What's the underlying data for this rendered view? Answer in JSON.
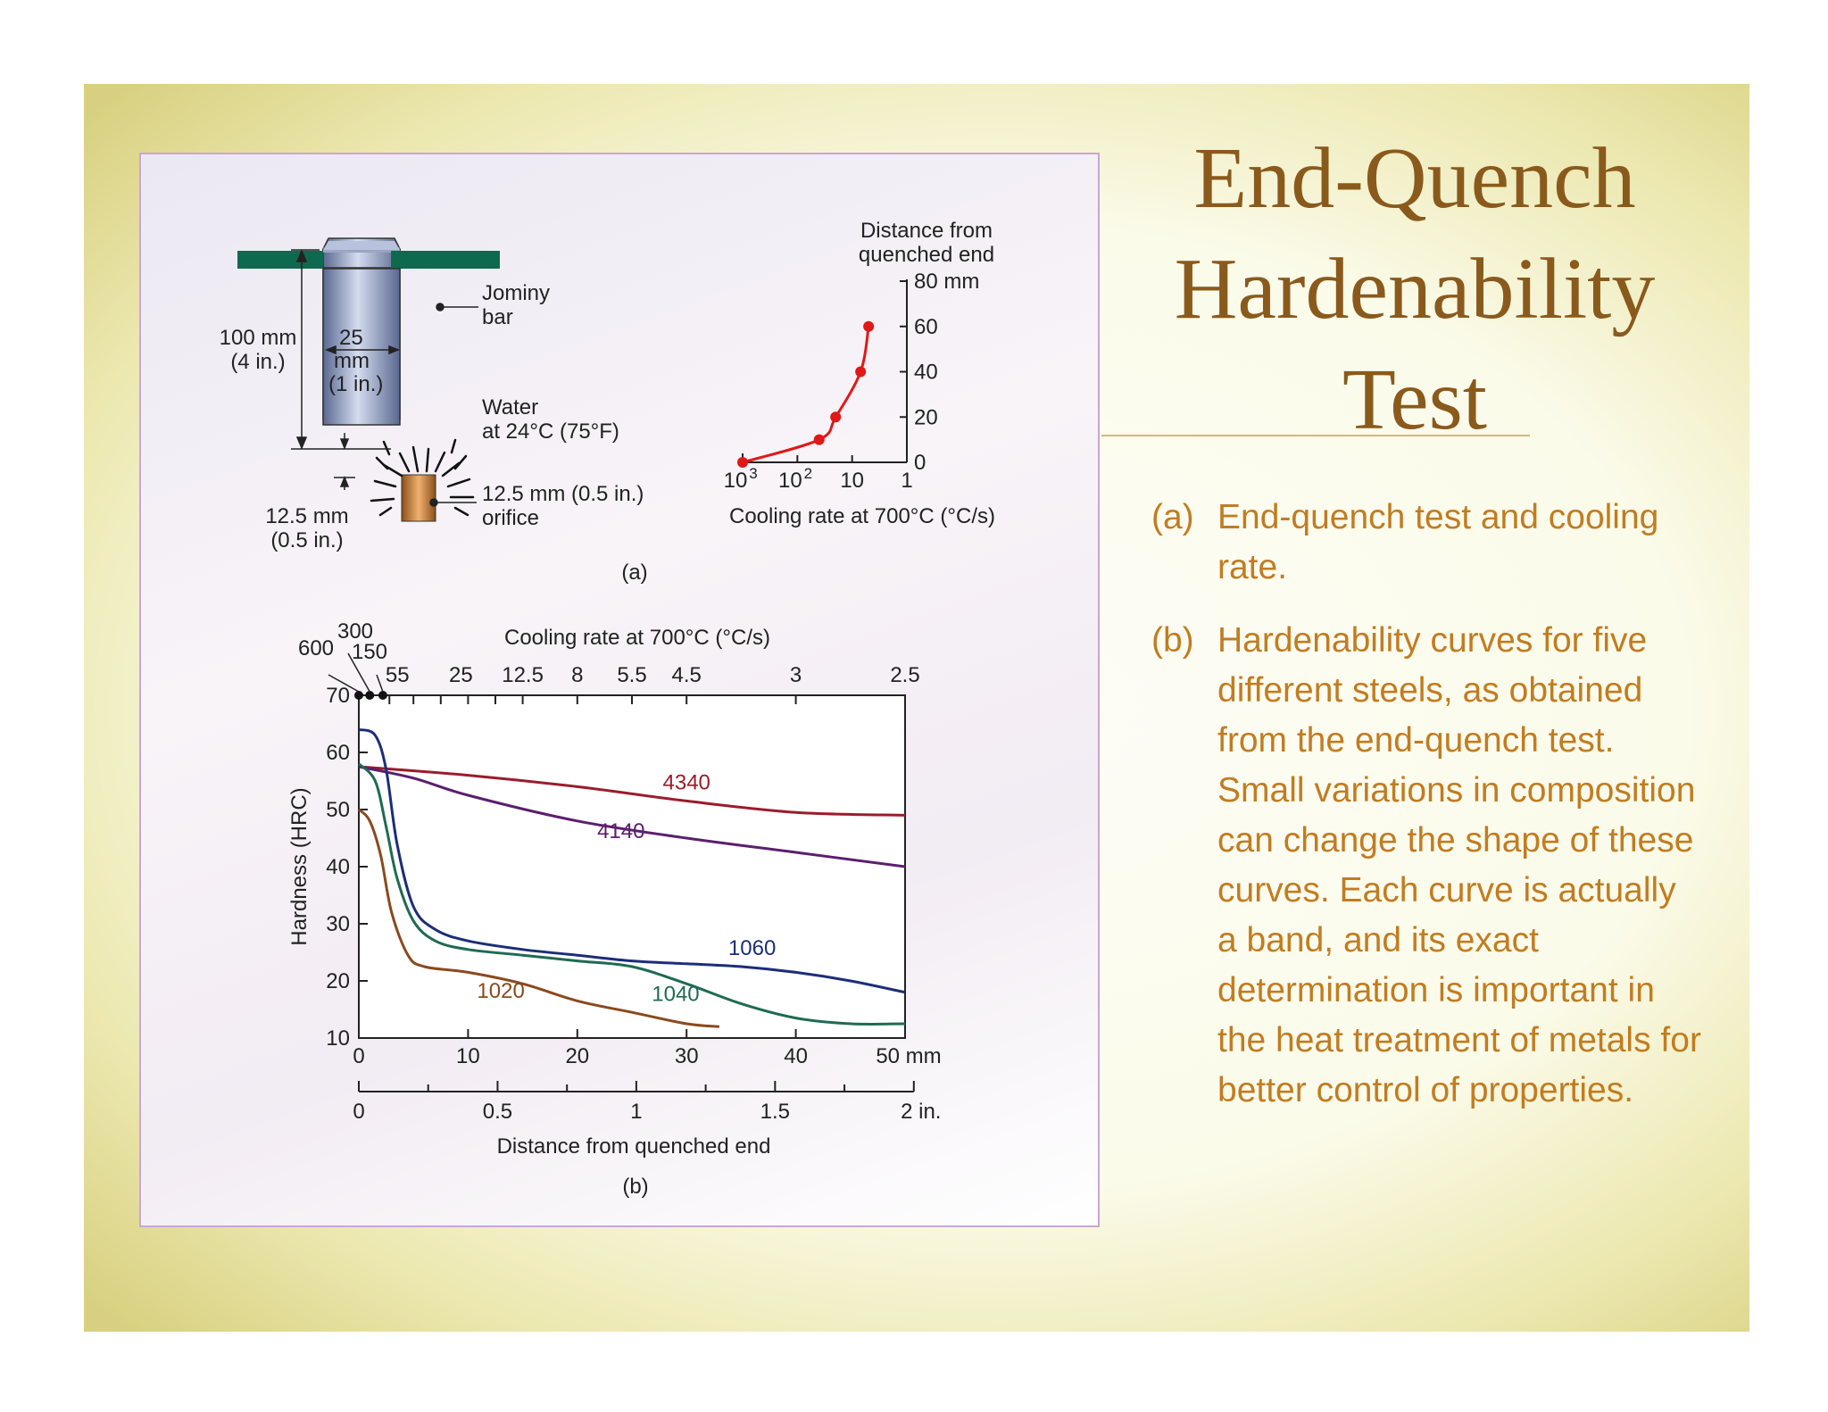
{
  "slide": {
    "title_lines": [
      "End-Quench",
      "Hardenability",
      "Test"
    ],
    "captions": [
      {
        "label": "(a)",
        "text": "End-quench test and cooling rate."
      },
      {
        "label": "(b)",
        "text": "Hardenability curves for five different steels, as obtained from the end-quench test.  Small variations in composition can change the shape of these curves.  Each curve is actually a band, and its exact determination is important in the heat treatment of metals for better control of properties."
      }
    ],
    "colors": {
      "title": "#8a5a1c",
      "caption": "#c27c20",
      "frame": "#d8d080"
    }
  },
  "figure_a": {
    "part_label": "(a)",
    "bar_label": [
      "Jominy",
      "bar"
    ],
    "height_label": [
      "100 mm",
      "(4 in.)"
    ],
    "diameter_label": [
      "25",
      "mm",
      "(1 in.)"
    ],
    "water_label": [
      "Water",
      "at 24°C (75°F)"
    ],
    "orifice_label": [
      "12.5 mm (0.5 in.)",
      "orifice"
    ],
    "gap_label": [
      "12.5 mm",
      "(0.5 in.)"
    ],
    "inset_chart": {
      "type": "line",
      "ylabel": [
        "Distance from",
        "quenched end"
      ],
      "xlabel": "Cooling rate at 700°C (°C/s)",
      "y_ticks": [
        "80 mm",
        "60",
        "40",
        "20",
        "0"
      ],
      "x_ticks": [
        "10",
        "10",
        "10",
        "1"
      ],
      "x_tick_exponents": [
        "3",
        "2",
        "",
        ""
      ],
      "points": [
        [
          1000,
          0
        ],
        [
          40,
          10
        ],
        [
          20,
          20
        ],
        [
          7,
          40
        ],
        [
          5,
          60
        ]
      ],
      "color": "#e01818"
    }
  },
  "chart_data": {
    "type": "line",
    "part_label": "(b)",
    "xlabel": "Distance from quenched end",
    "ylabel": "Hardness (HRC)",
    "top_axis_label": "Cooling rate at 700°C (°C/s)",
    "xlim": [
      0,
      50
    ],
    "ylim": [
      10,
      70
    ],
    "x_ticks": [
      "0",
      "10",
      "20",
      "30",
      "40",
      "50 mm"
    ],
    "y_ticks": [
      "10",
      "20",
      "30",
      "40",
      "50",
      "60",
      "70"
    ],
    "inch_ticks": [
      "0",
      "0.5",
      "1",
      "1.5",
      "2 in."
    ],
    "top_ticks": [
      "55",
      "25",
      "12.5",
      "8",
      "5.5",
      "4.5",
      "3",
      "2.5"
    ],
    "top_ticks_extra": [
      "600",
      "300",
      "150"
    ],
    "series": [
      {
        "name": "4340",
        "color": "#9a1c2c",
        "points": [
          [
            0,
            57.5
          ],
          [
            10,
            56
          ],
          [
            20,
            54
          ],
          [
            30,
            51.5
          ],
          [
            40,
            49.5
          ],
          [
            50,
            49
          ]
        ]
      },
      {
        "name": "4140",
        "color": "#5c1e6e",
        "points": [
          [
            0,
            57.5
          ],
          [
            5,
            55.5
          ],
          [
            10,
            52.5
          ],
          [
            20,
            48
          ],
          [
            30,
            45
          ],
          [
            40,
            42.5
          ],
          [
            50,
            40
          ]
        ]
      },
      {
        "name": "1060",
        "color": "#1c2e78",
        "points": [
          [
            0,
            64
          ],
          [
            1.5,
            63
          ],
          [
            2.5,
            57
          ],
          [
            3.5,
            44
          ],
          [
            5,
            33
          ],
          [
            7,
            29
          ],
          [
            10,
            27
          ],
          [
            15,
            25.5
          ],
          [
            20,
            24.5
          ],
          [
            25,
            23.5
          ],
          [
            30,
            23
          ],
          [
            35,
            22.5
          ],
          [
            40,
            21.5
          ],
          [
            45,
            20
          ],
          [
            50,
            18
          ]
        ]
      },
      {
        "name": "1040",
        "color": "#1e6a52",
        "points": [
          [
            0,
            58
          ],
          [
            1.5,
            55
          ],
          [
            2.5,
            47
          ],
          [
            3.5,
            38
          ],
          [
            5,
            30.5
          ],
          [
            7,
            27
          ],
          [
            10,
            25.5
          ],
          [
            15,
            24.5
          ],
          [
            20,
            23.5
          ],
          [
            25,
            22.5
          ],
          [
            30,
            19.5
          ],
          [
            35,
            16
          ],
          [
            40,
            13.5
          ],
          [
            45,
            12.5
          ],
          [
            50,
            12.5
          ]
        ]
      },
      {
        "name": "1020",
        "color": "#8a4a1e",
        "points": [
          [
            0,
            50
          ],
          [
            1,
            48
          ],
          [
            2,
            42
          ],
          [
            3,
            32
          ],
          [
            4.5,
            24.5
          ],
          [
            6,
            22.5
          ],
          [
            10,
            21.5
          ],
          [
            15,
            19.5
          ],
          [
            20,
            16.5
          ],
          [
            25,
            14.5
          ],
          [
            30,
            12.5
          ],
          [
            33,
            12
          ]
        ]
      }
    ]
  }
}
